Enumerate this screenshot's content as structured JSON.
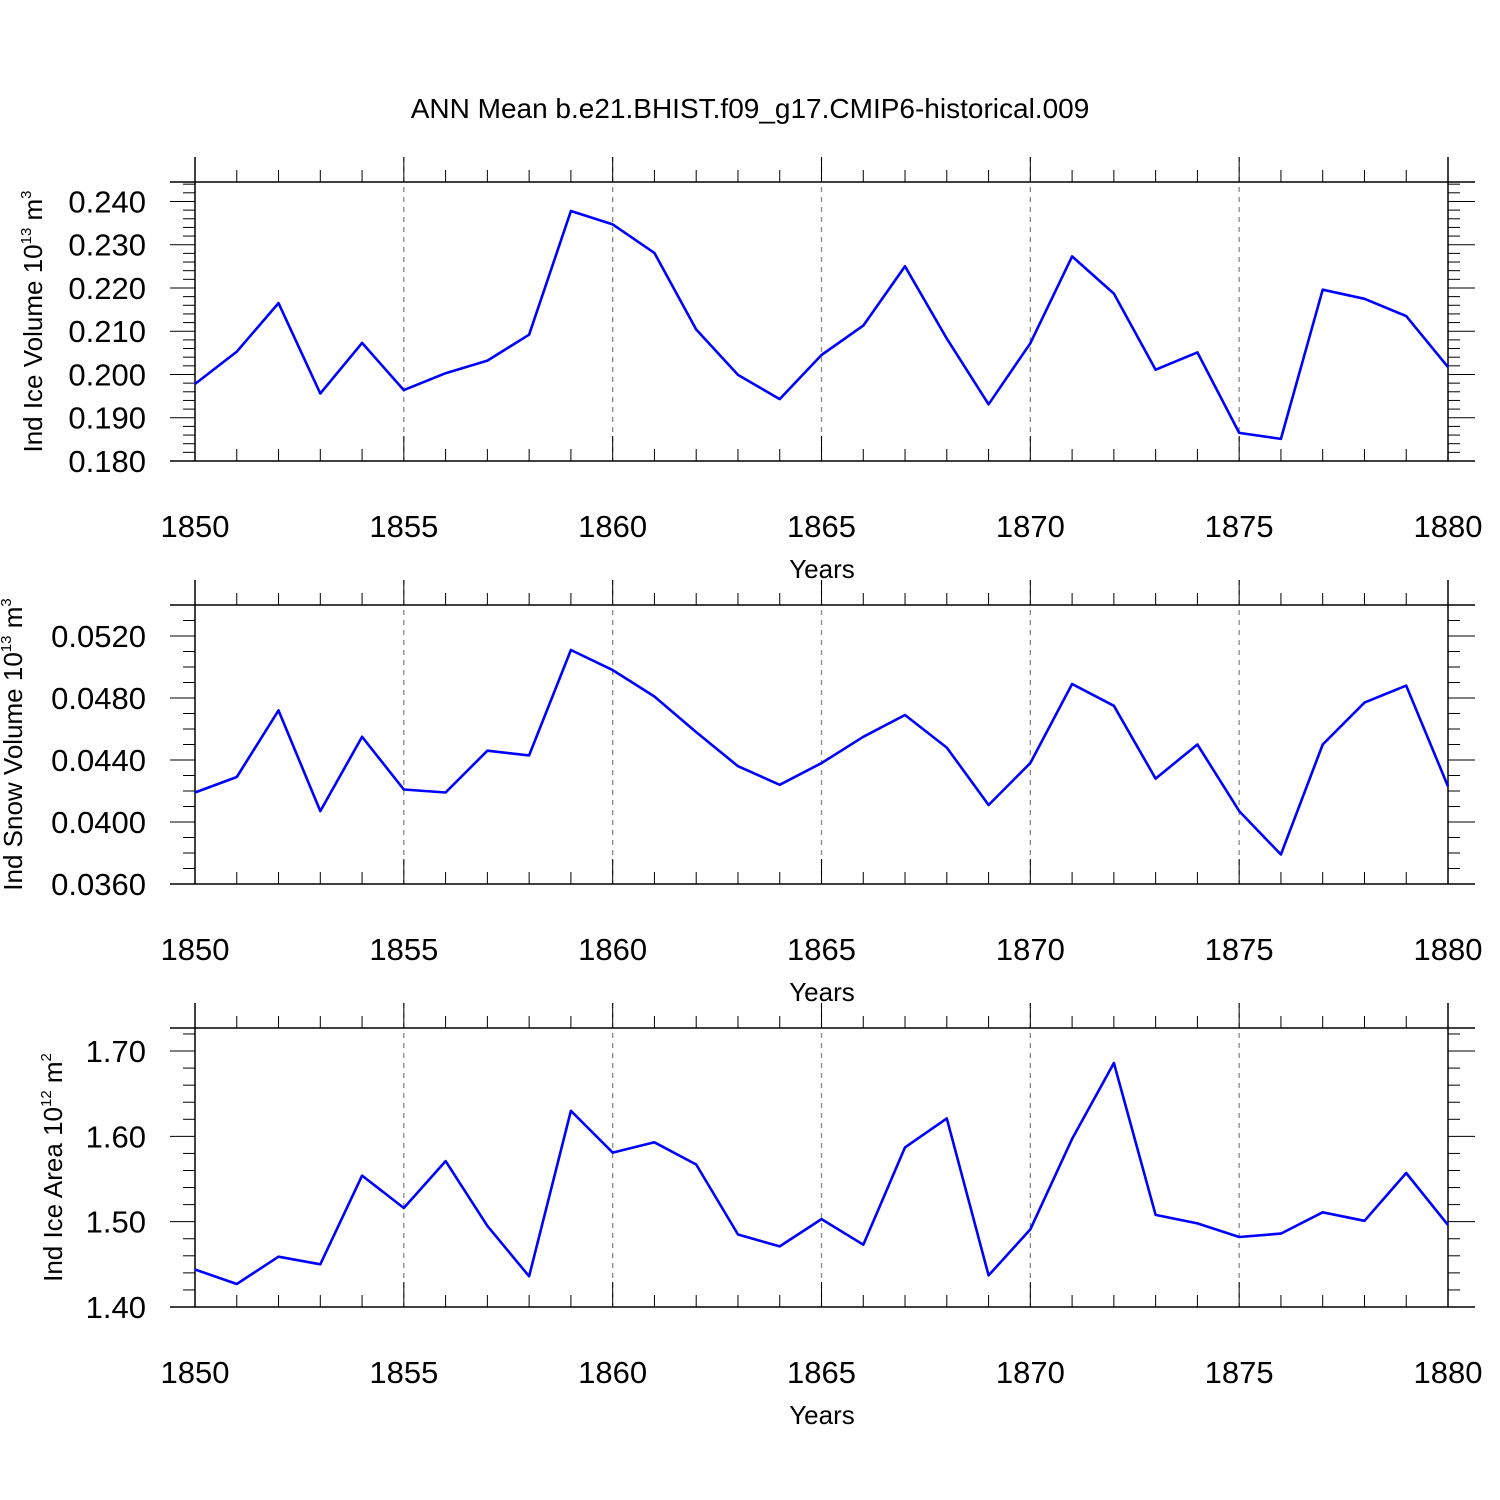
{
  "title": "ANN Mean b.e21.BHIST.f09_g17.CMIP6-historical.009",
  "colors": {
    "line": "#0000ff",
    "axis": "#000000",
    "grid": "#888888"
  },
  "chart_data": [
    {
      "type": "line",
      "xlabel": "Years",
      "ylabel": {
        "text": "Ind Ice Volume 10",
        "sup1": "13",
        "mid": " m",
        "sup2": "3"
      },
      "xlim": [
        1850,
        1880
      ],
      "ylim": [
        0.18,
        0.2445
      ],
      "yticks": [
        "0.180",
        "0.190",
        "0.200",
        "0.210",
        "0.220",
        "0.230",
        "0.240"
      ],
      "xticks": [
        "1850",
        "1855",
        "1860",
        "1865",
        "1870",
        "1875",
        "1880"
      ],
      "grid": "vertical dashed at major x ticks",
      "x": [
        1850,
        1851,
        1852,
        1853,
        1854,
        1855,
        1856,
        1857,
        1858,
        1859,
        1860,
        1861,
        1862,
        1863,
        1864,
        1865,
        1866,
        1867,
        1868,
        1869,
        1870,
        1871,
        1872,
        1873,
        1874,
        1875,
        1876,
        1877,
        1878,
        1879,
        1880
      ],
      "series": [
        {
          "values": [
            0.1978,
            0.2053,
            0.2165,
            0.1956,
            0.2073,
            0.1964,
            0.2003,
            0.2032,
            0.2092,
            0.2378,
            0.2347,
            0.2281,
            0.2104,
            0.1999,
            0.1943,
            0.2045,
            0.2113,
            0.225,
            0.2083,
            0.1931,
            0.2072,
            0.2273,
            0.2187,
            0.2011,
            0.2051,
            0.1865,
            0.1851,
            0.2196,
            0.2175,
            0.2135,
            0.2017
          ]
        }
      ]
    },
    {
      "type": "line",
      "xlabel": "Years",
      "ylabel": {
        "text": "Ind Snow Volume 10",
        "sup1": "13",
        "mid": " m",
        "sup2": "3"
      },
      "xlim": [
        1850,
        1880
      ],
      "ylim": [
        0.036,
        0.054
      ],
      "yticks": [
        "0.0360",
        "0.0400",
        "0.0440",
        "0.0480",
        "0.0520"
      ],
      "xticks": [
        "1850",
        "1855",
        "1860",
        "1865",
        "1870",
        "1875",
        "1880"
      ],
      "grid": "vertical dashed at major x ticks",
      "x": [
        1850,
        1851,
        1852,
        1853,
        1854,
        1855,
        1856,
        1857,
        1858,
        1859,
        1860,
        1861,
        1862,
        1863,
        1864,
        1865,
        1866,
        1867,
        1868,
        1869,
        1870,
        1871,
        1872,
        1873,
        1874,
        1875,
        1876,
        1877,
        1878,
        1879,
        1880
      ],
      "series": [
        {
          "values": [
            0.0419,
            0.0429,
            0.0472,
            0.0407,
            0.0455,
            0.0421,
            0.0419,
            0.0446,
            0.0443,
            0.0511,
            0.0498,
            0.0481,
            0.0458,
            0.0436,
            0.0424,
            0.0438,
            0.0455,
            0.0469,
            0.0448,
            0.0411,
            0.0438,
            0.0489,
            0.0475,
            0.0428,
            0.045,
            0.0407,
            0.0379,
            0.045,
            0.0477,
            0.0488,
            0.0423
          ]
        }
      ]
    },
    {
      "type": "line",
      "xlabel": "Years",
      "ylabel": {
        "text": "Ind Ice Area 10",
        "sup1": "12",
        "mid": " m",
        "sup2": "2"
      },
      "xlim": [
        1850,
        1880
      ],
      "ylim": [
        1.4,
        1.727
      ],
      "yticks": [
        "1.40",
        "1.50",
        "1.60",
        "1.70"
      ],
      "xticks": [
        "1850",
        "1855",
        "1860",
        "1865",
        "1870",
        "1875",
        "1880"
      ],
      "grid": "vertical dashed at major x ticks",
      "x": [
        1850,
        1851,
        1852,
        1853,
        1854,
        1855,
        1856,
        1857,
        1858,
        1859,
        1860,
        1861,
        1862,
        1863,
        1864,
        1865,
        1866,
        1867,
        1868,
        1869,
        1870,
        1871,
        1872,
        1873,
        1874,
        1875,
        1876,
        1877,
        1878,
        1879,
        1880
      ],
      "series": [
        {
          "values": [
            1.444,
            1.427,
            1.459,
            1.45,
            1.554,
            1.516,
            1.571,
            1.495,
            1.436,
            1.63,
            1.581,
            1.593,
            1.567,
            1.485,
            1.471,
            1.503,
            1.473,
            1.587,
            1.621,
            1.437,
            1.491,
            1.597,
            1.686,
            1.508,
            1.498,
            1.482,
            1.486,
            1.511,
            1.501,
            1.557,
            1.496
          ]
        }
      ]
    }
  ]
}
